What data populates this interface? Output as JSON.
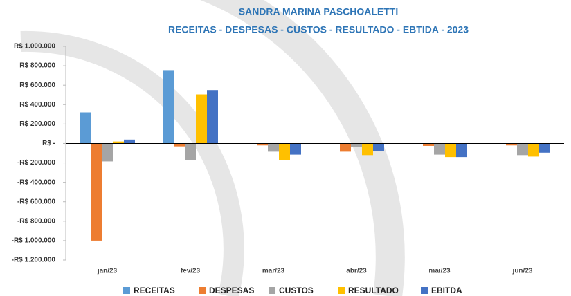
{
  "chart_data": {
    "type": "bar",
    "title": "SANDRA MARINA PASCHOALETTI",
    "subtitle": "RECEITAS - DESPESAS - CUSTOS - RESULTADO - EBTIDA - 2023",
    "categories": [
      "jan/23",
      "fev/23",
      "mar/23",
      "abr/23",
      "mai/23",
      "jun/23"
    ],
    "series": [
      {
        "name": "RECEITAS",
        "color": "#5b9bd5",
        "values": [
          320000,
          755000,
          0,
          0,
          0,
          0
        ]
      },
      {
        "name": "DESPESAS",
        "color": "#ed7d31",
        "values": [
          -1000000,
          -30000,
          -20000,
          -85000,
          -25000,
          -20000
        ]
      },
      {
        "name": "CUSTOS",
        "color": "#a5a5a5",
        "values": [
          -185000,
          -170000,
          -85000,
          -35000,
          -115000,
          -120000
        ]
      },
      {
        "name": "RESULTADO",
        "color": "#ffc000",
        "values": [
          20000,
          505000,
          -170000,
          -120000,
          -140000,
          -135000
        ]
      },
      {
        "name": "EBITDA",
        "color": "#4472c4",
        "values": [
          40000,
          550000,
          -115000,
          -80000,
          -140000,
          -95000
        ]
      }
    ],
    "ylim": [
      -1200000,
      1000000
    ],
    "yticks": [
      {
        "value": -1200000,
        "label": "-R$ 1.200.000"
      },
      {
        "value": -1000000,
        "label": "-R$ 1.000.000"
      },
      {
        "value": -800000,
        "label": "-R$ 800.000"
      },
      {
        "value": -600000,
        "label": "-R$ 600.000"
      },
      {
        "value": -400000,
        "label": "-R$ 400.000"
      },
      {
        "value": -200000,
        "label": "-R$ 200.000"
      },
      {
        "value": 0,
        "label": "R$ -"
      },
      {
        "value": 200000,
        "label": "R$ 200.000"
      },
      {
        "value": 400000,
        "label": "R$ 400.000"
      },
      {
        "value": 600000,
        "label": "R$ 600.000"
      },
      {
        "value": 800000,
        "label": "R$ 800.000"
      },
      {
        "value": 1000000,
        "label": "R$ 1.000.000"
      }
    ],
    "legend": "bottom"
  }
}
